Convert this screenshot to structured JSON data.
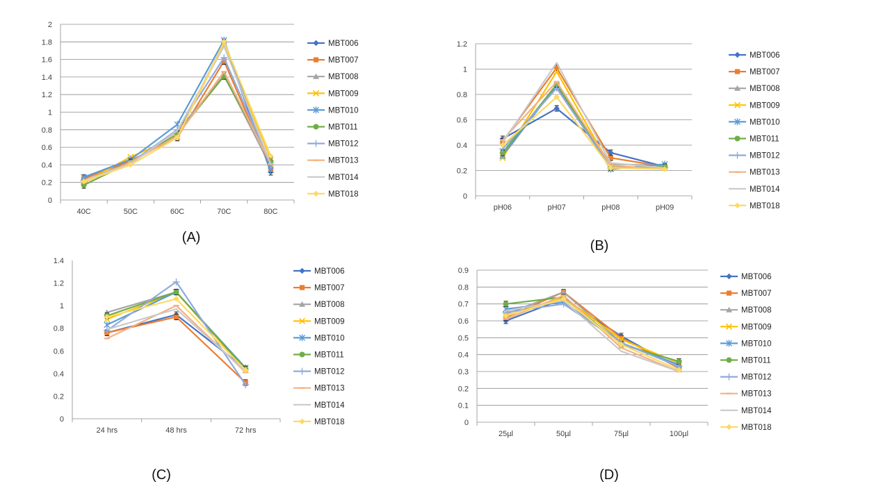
{
  "figure_panels": [
    "(A)",
    "(B)",
    "(C)",
    "(D)"
  ],
  "series_names": [
    "MBT006",
    "MBT007",
    "MBT008",
    "MBT009",
    "MBT010",
    "MBT011",
    "MBT012",
    "MBT013",
    "MBT014",
    "MBT018"
  ],
  "series_colors": [
    "#4472C4",
    "#ED7D31",
    "#A5A5A5",
    "#FFC000",
    "#5B9BD5",
    "#70AD47",
    "#8FAADC",
    "#F4B183",
    "#C9C9C9",
    "#FFD966"
  ],
  "series_markers": [
    "diamond",
    "square",
    "triangle",
    "x",
    "asterisk",
    "circle",
    "plus",
    "dash",
    "line",
    "diamond"
  ],
  "chart_data": [
    {
      "panel": "(A)",
      "type": "line",
      "categories": [
        "40C",
        "50C",
        "60C",
        "70C",
        "80C"
      ],
      "ylim": [
        0,
        2
      ],
      "yticks": [
        "0",
        "0.2",
        "0.4",
        "0.6",
        "0.8",
        "1",
        "1.2",
        "1.4",
        "1.6",
        "1.8",
        "2"
      ],
      "grid": true,
      "legend": "right",
      "series": [
        {
          "name": "MBT006",
          "values": [
            0.25,
            0.44,
            0.74,
            1.79,
            0.32
          ]
        },
        {
          "name": "MBT007",
          "values": [
            0.24,
            0.45,
            0.71,
            1.58,
            0.35
          ]
        },
        {
          "name": "MBT008",
          "values": [
            0.21,
            0.43,
            0.78,
            1.42,
            0.38
          ]
        },
        {
          "name": "MBT009",
          "values": [
            0.2,
            0.49,
            0.72,
            1.78,
            0.47
          ]
        },
        {
          "name": "MBT010",
          "values": [
            0.26,
            0.46,
            0.86,
            1.82,
            0.34
          ]
        },
        {
          "name": "MBT011",
          "values": [
            0.17,
            0.43,
            0.75,
            1.41,
            0.44
          ]
        },
        {
          "name": "MBT012",
          "values": [
            0.22,
            0.42,
            0.8,
            1.62,
            0.4
          ]
        },
        {
          "name": "MBT013",
          "values": [
            0.2,
            0.43,
            0.73,
            1.46,
            0.41
          ]
        },
        {
          "name": "MBT014",
          "values": [
            0.22,
            0.41,
            0.79,
            1.75,
            0.41
          ]
        },
        {
          "name": "MBT018",
          "values": [
            0.21,
            0.4,
            0.71,
            1.8,
            0.5
          ]
        }
      ]
    },
    {
      "panel": "(B)",
      "type": "line",
      "categories": [
        "pH06",
        "pH07",
        "pH08",
        "pH09"
      ],
      "ylim": [
        0,
        1.2
      ],
      "yticks": [
        "0",
        "0.2",
        "0.4",
        "0.6",
        "0.8",
        "1",
        "1.2"
      ],
      "grid": true,
      "legend": "right",
      "series": [
        {
          "name": "MBT006",
          "values": [
            0.45,
            0.69,
            0.34,
            0.23
          ]
        },
        {
          "name": "MBT007",
          "values": [
            0.43,
            1.01,
            0.3,
            0.23
          ]
        },
        {
          "name": "MBT008",
          "values": [
            0.31,
            0.88,
            0.25,
            0.24
          ]
        },
        {
          "name": "MBT009",
          "values": [
            0.3,
            0.98,
            0.23,
            0.22
          ]
        },
        {
          "name": "MBT010",
          "values": [
            0.32,
            0.87,
            0.21,
            0.25
          ]
        },
        {
          "name": "MBT011",
          "values": [
            0.34,
            0.88,
            0.22,
            0.23
          ]
        },
        {
          "name": "MBT012",
          "values": [
            0.37,
            0.85,
            0.22,
            0.22
          ]
        },
        {
          "name": "MBT013",
          "values": [
            0.44,
            0.9,
            0.24,
            0.21
          ]
        },
        {
          "name": "MBT014",
          "values": [
            0.42,
            1.05,
            0.26,
            0.22
          ]
        },
        {
          "name": "MBT018",
          "values": [
            0.4,
            0.78,
            0.22,
            0.21
          ]
        }
      ]
    },
    {
      "panel": "(C)",
      "type": "line",
      "categories": [
        "24 hrs",
        "48 hrs",
        "72 hrs"
      ],
      "ylim": [
        0,
        1.4
      ],
      "yticks": [
        "0",
        "0.2",
        "0.4",
        "0.6",
        "0.8",
        "1",
        "1.2",
        "1.4"
      ],
      "grid": false,
      "legend": "right",
      "series": [
        {
          "name": "MBT006",
          "values": [
            0.76,
            0.92,
            0.44
          ]
        },
        {
          "name": "MBT007",
          "values": [
            0.76,
            0.9,
            0.32
          ]
        },
        {
          "name": "MBT008",
          "values": [
            0.94,
            1.12,
            0.45
          ]
        },
        {
          "name": "MBT009",
          "values": [
            0.88,
            1.12,
            0.43
          ]
        },
        {
          "name": "MBT010",
          "values": [
            0.83,
            1.12,
            0.45
          ]
        },
        {
          "name": "MBT011",
          "values": [
            0.91,
            1.12,
            0.44
          ]
        },
        {
          "name": "MBT012",
          "values": [
            0.78,
            1.21,
            0.3
          ]
        },
        {
          "name": "MBT013",
          "values": [
            0.71,
            1.0,
            0.41
          ]
        },
        {
          "name": "MBT014",
          "values": [
            0.79,
            0.97,
            0.42
          ]
        },
        {
          "name": "MBT018",
          "values": [
            0.9,
            1.06,
            0.43
          ]
        }
      ]
    },
    {
      "panel": "(D)",
      "type": "line",
      "categories": [
        "25µl",
        "50µl",
        "75µl",
        "100µl"
      ],
      "ylim": [
        0,
        0.9
      ],
      "yticks": [
        "0",
        "0.1",
        "0.2",
        "0.3",
        "0.4",
        "0.5",
        "0.6",
        "0.7",
        "0.8",
        "0.9"
      ],
      "grid": true,
      "legend": "right",
      "series": [
        {
          "name": "MBT006",
          "values": [
            0.6,
            0.73,
            0.51,
            0.32
          ]
        },
        {
          "name": "MBT007",
          "values": [
            0.62,
            0.77,
            0.5,
            0.32
          ]
        },
        {
          "name": "MBT008",
          "values": [
            0.64,
            0.77,
            0.47,
            0.33
          ]
        },
        {
          "name": "MBT009",
          "values": [
            0.63,
            0.74,
            0.49,
            0.35
          ]
        },
        {
          "name": "MBT010",
          "values": [
            0.67,
            0.71,
            0.47,
            0.34
          ]
        },
        {
          "name": "MBT011",
          "values": [
            0.7,
            0.74,
            0.46,
            0.36
          ]
        },
        {
          "name": "MBT012",
          "values": [
            0.65,
            0.7,
            0.47,
            0.33
          ]
        },
        {
          "name": "MBT013",
          "values": [
            0.61,
            0.75,
            0.44,
            0.3
          ]
        },
        {
          "name": "MBT014",
          "values": [
            0.66,
            0.72,
            0.42,
            0.3
          ]
        },
        {
          "name": "MBT018",
          "values": [
            0.63,
            0.73,
            0.46,
            0.31
          ]
        }
      ]
    }
  ]
}
